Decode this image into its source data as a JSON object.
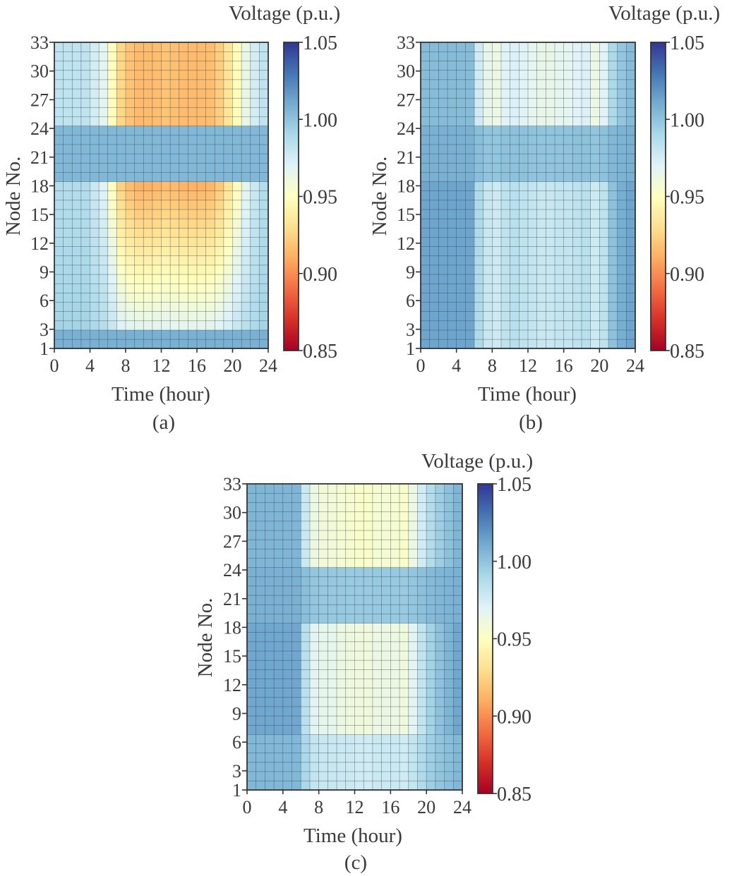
{
  "figure": {
    "panels": [
      {
        "id": "a",
        "label": "(a)"
      },
      {
        "id": "b",
        "label": "(b)"
      },
      {
        "id": "c",
        "label": "(c)"
      }
    ]
  },
  "colorbar": {
    "title": "Voltage (p.u.)",
    "min": 0.85,
    "max": 1.05,
    "tick_values": [
      1.05,
      1.0,
      0.95,
      0.9,
      0.85
    ],
    "tick_labels": [
      "1.05",
      "1.00",
      "0.95",
      "0.90",
      "0.85"
    ],
    "colormap": [
      "#a50026",
      "#d73027",
      "#f46d43",
      "#fdae61",
      "#fee090",
      "#ffffbf",
      "#e0f3f8",
      "#abd9e9",
      "#74add1",
      "#4575b4",
      "#313695"
    ]
  },
  "chart_data": [
    {
      "type": "heatmap",
      "panel": "(a)",
      "xlabel": "Time (hour)",
      "ylabel": "Node No.",
      "xlim": [
        0,
        24
      ],
      "ylim": [
        1,
        33
      ],
      "x_ticks": [
        0,
        4,
        8,
        12,
        16,
        20,
        24
      ],
      "y_ticks": [
        1,
        3,
        6,
        9,
        12,
        15,
        18,
        21,
        24,
        27,
        30,
        33
      ],
      "grid": true,
      "value_range": [
        0.85,
        1.05
      ],
      "hour_profile": [
        0.1,
        0.1,
        0.1,
        0.1,
        0.2,
        0.3,
        0.55,
        0.85,
        0.95,
        1.0,
        1.0,
        0.98,
        0.95,
        0.97,
        0.99,
        1.0,
        1.0,
        0.98,
        0.9,
        0.75,
        0.55,
        0.35,
        0.2,
        0.1
      ],
      "regions": [
        {
          "nodes": [
            1,
            2
          ],
          "base": 1.008,
          "drop": 0.0
        },
        {
          "nodes": [
            3,
            18
          ],
          "base": 0.995,
          "drop": 0.083,
          "depth_growth": true
        },
        {
          "nodes": [
            19,
            24
          ],
          "base": 1.005,
          "drop": 0.0
        },
        {
          "nodes": [
            25,
            33
          ],
          "base": 0.99,
          "drop": 0.075
        }
      ]
    },
    {
      "type": "heatmap",
      "panel": "(b)",
      "xlabel": "Time (hour)",
      "ylabel": "Node No.",
      "xlim": [
        0,
        24
      ],
      "ylim": [
        1,
        33
      ],
      "x_ticks": [
        0,
        4,
        8,
        12,
        16,
        20,
        24
      ],
      "y_ticks": [
        1,
        3,
        6,
        9,
        12,
        15,
        18,
        21,
        24,
        27,
        30,
        33
      ],
      "grid": true,
      "value_range": [
        0.85,
        1.05
      ],
      "hour_profile": [
        0.0,
        0.0,
        0.0,
        0.0,
        0.0,
        0.0,
        0.6,
        0.85,
        0.9,
        0.75,
        0.7,
        0.75,
        0.8,
        0.85,
        0.85,
        0.8,
        0.8,
        0.75,
        0.7,
        0.9,
        0.75,
        0.3,
        0.1,
        0.0
      ],
      "regions": [
        {
          "nodes": [
            1,
            18
          ],
          "base": 1.013,
          "drop": 0.04
        },
        {
          "nodes": [
            19,
            24
          ],
          "base": 1.008,
          "drop": 0.01
        },
        {
          "nodes": [
            25,
            33
          ],
          "base": 1.003,
          "drop": 0.045
        }
      ]
    },
    {
      "type": "heatmap",
      "panel": "(c)",
      "xlabel": "Time (hour)",
      "ylabel": "Node No.",
      "xlim": [
        0,
        24
      ],
      "ylim": [
        1,
        33
      ],
      "x_ticks": [
        0,
        4,
        8,
        12,
        16,
        20,
        24
      ],
      "y_ticks": [
        1,
        3,
        6,
        9,
        12,
        15,
        18,
        21,
        24,
        27,
        30,
        33
      ],
      "grid": true,
      "value_range": [
        0.85,
        1.05
      ],
      "hour_profile": [
        0.0,
        0.0,
        0.0,
        0.0,
        0.0,
        0.0,
        0.5,
        0.8,
        0.85,
        0.85,
        0.9,
        0.92,
        0.95,
        0.95,
        0.9,
        0.9,
        0.9,
        0.95,
        0.8,
        0.55,
        0.35,
        0.2,
        0.1,
        0.0
      ],
      "regions": [
        {
          "nodes": [
            1,
            6
          ],
          "base": 1.005,
          "drop": 0.03
        },
        {
          "nodes": [
            7,
            18
          ],
          "base": 1.012,
          "drop": 0.055
        },
        {
          "nodes": [
            19,
            24
          ],
          "base": 1.008,
          "drop": 0.012
        },
        {
          "nodes": [
            25,
            33
          ],
          "base": 1.006,
          "drop": 0.055
        }
      ]
    }
  ]
}
